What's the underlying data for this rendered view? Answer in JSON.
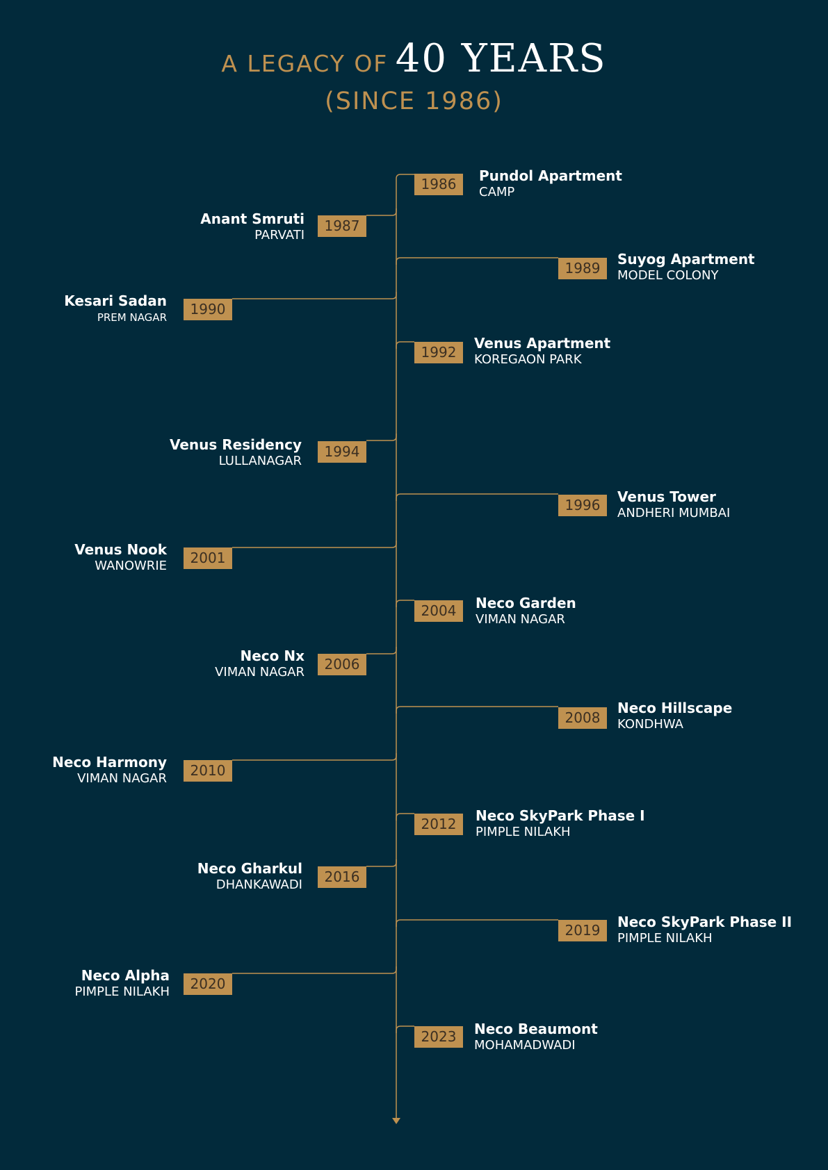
{
  "header": {
    "title_prefix": "A LEGACY OF",
    "title_emphasis": "40 YEARS",
    "subtitle": "(SINCE 1986)"
  },
  "colors": {
    "background": "#022a3b",
    "accent_gold": "#bf9150",
    "text": "#ffffff",
    "year_text": "#3b2f22"
  },
  "timeline": [
    {
      "year": "1986",
      "name": "Pundol Apartment",
      "location": "CAMP",
      "side": "right"
    },
    {
      "year": "1987",
      "name": "Anant Smruti",
      "location": "PARVATI",
      "side": "left"
    },
    {
      "year": "1989",
      "name": "Suyog Apartment",
      "location": "MODEL COLONY",
      "side": "right"
    },
    {
      "year": "1990",
      "name": "Kesari Sadan",
      "location": "PREM NAGAR",
      "side": "left"
    },
    {
      "year": "1992",
      "name": "Venus Apartment",
      "location": "KOREGAON PARK",
      "side": "right"
    },
    {
      "year": "1994",
      "name": "Venus Residency",
      "location": "LULLANAGAR",
      "side": "left"
    },
    {
      "year": "1996",
      "name": "Venus Tower",
      "location": "ANDHERI MUMBAI",
      "side": "right"
    },
    {
      "year": "2001",
      "name": "Venus Nook",
      "location": "WANOWRIE",
      "side": "left"
    },
    {
      "year": "2004",
      "name": "Neco Garden",
      "location": "VIMAN NAGAR",
      "side": "right"
    },
    {
      "year": "2006",
      "name": "Neco Nx",
      "location": "VIMAN NAGAR",
      "side": "left"
    },
    {
      "year": "2008",
      "name": "Neco Hillscape",
      "location": "KONDHWA",
      "side": "right"
    },
    {
      "year": "2010",
      "name": "Neco Harmony",
      "location": "VIMAN NAGAR",
      "side": "left"
    },
    {
      "year": "2012",
      "name": "Neco SkyPark Phase I",
      "location": "PIMPLE NILAKH",
      "side": "right"
    },
    {
      "year": "2016",
      "name": "Neco Gharkul",
      "location": "DHANKAWADI",
      "side": "left"
    },
    {
      "year": "2019",
      "name": "Neco  SkyPark Phase II",
      "location": "PIMPLE NILAKH",
      "side": "right"
    },
    {
      "year": "2020",
      "name": "Neco Alpha",
      "location": "PIMPLE NILAKH",
      "side": "left"
    },
    {
      "year": "2023",
      "name": "Neco Beaumont",
      "location": "MOHAMADWADI",
      "side": "right"
    }
  ]
}
